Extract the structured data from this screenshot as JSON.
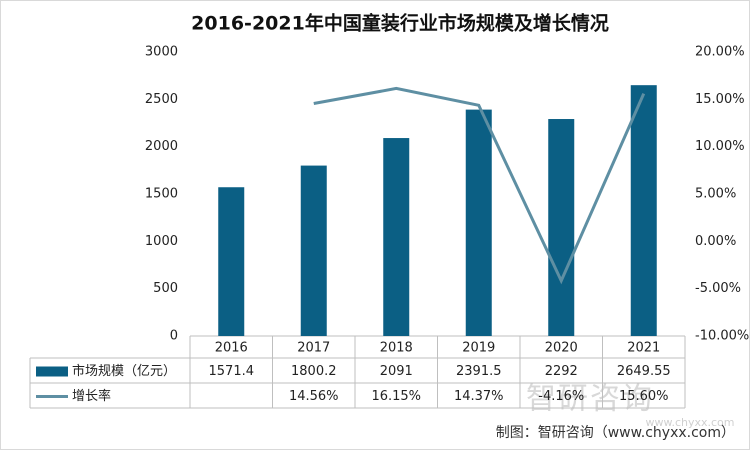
{
  "chart_data": {
    "type": "combo",
    "title": "2016-2021年中国童装行业市场规模及增长情况",
    "categories": [
      "2016",
      "2017",
      "2018",
      "2019",
      "2020",
      "2021"
    ],
    "series": [
      {
        "name": "市场规模（亿元）",
        "type": "bar",
        "color": "#0b5f84",
        "values": [
          1571.4,
          1800.2,
          2091,
          2391.5,
          2292,
          2649.55
        ]
      },
      {
        "name": "增长率",
        "type": "line",
        "axis": "y2",
        "color": "#5e8fa3",
        "values": [
          null,
          14.56,
          16.15,
          14.37,
          -4.16,
          15.6
        ],
        "value_labels": [
          null,
          "14.56%",
          "16.15%",
          "14.37%",
          "-4.16%",
          "15.60%"
        ]
      }
    ],
    "ylim": [
      0,
      3000
    ],
    "yticks": [
      0,
      500,
      1000,
      1500,
      2000,
      2500,
      3000
    ],
    "y2lim": [
      -10,
      20
    ],
    "y2ticks": [
      {
        "value": -10,
        "label": "-10.00%"
      },
      {
        "value": -5,
        "label": "-5.00%"
      },
      {
        "value": 0,
        "label": "0.00%"
      },
      {
        "value": 5,
        "label": "5.00%"
      },
      {
        "value": 10,
        "label": "10.00%"
      },
      {
        "value": 15,
        "label": "15.00%"
      },
      {
        "value": 20,
        "label": "20.00%"
      }
    ],
    "grid": false,
    "source": "制图：智研咨询（www.chyxx.com）",
    "watermark": "智研咨询",
    "watermark_url": "www.chyxx.com"
  }
}
